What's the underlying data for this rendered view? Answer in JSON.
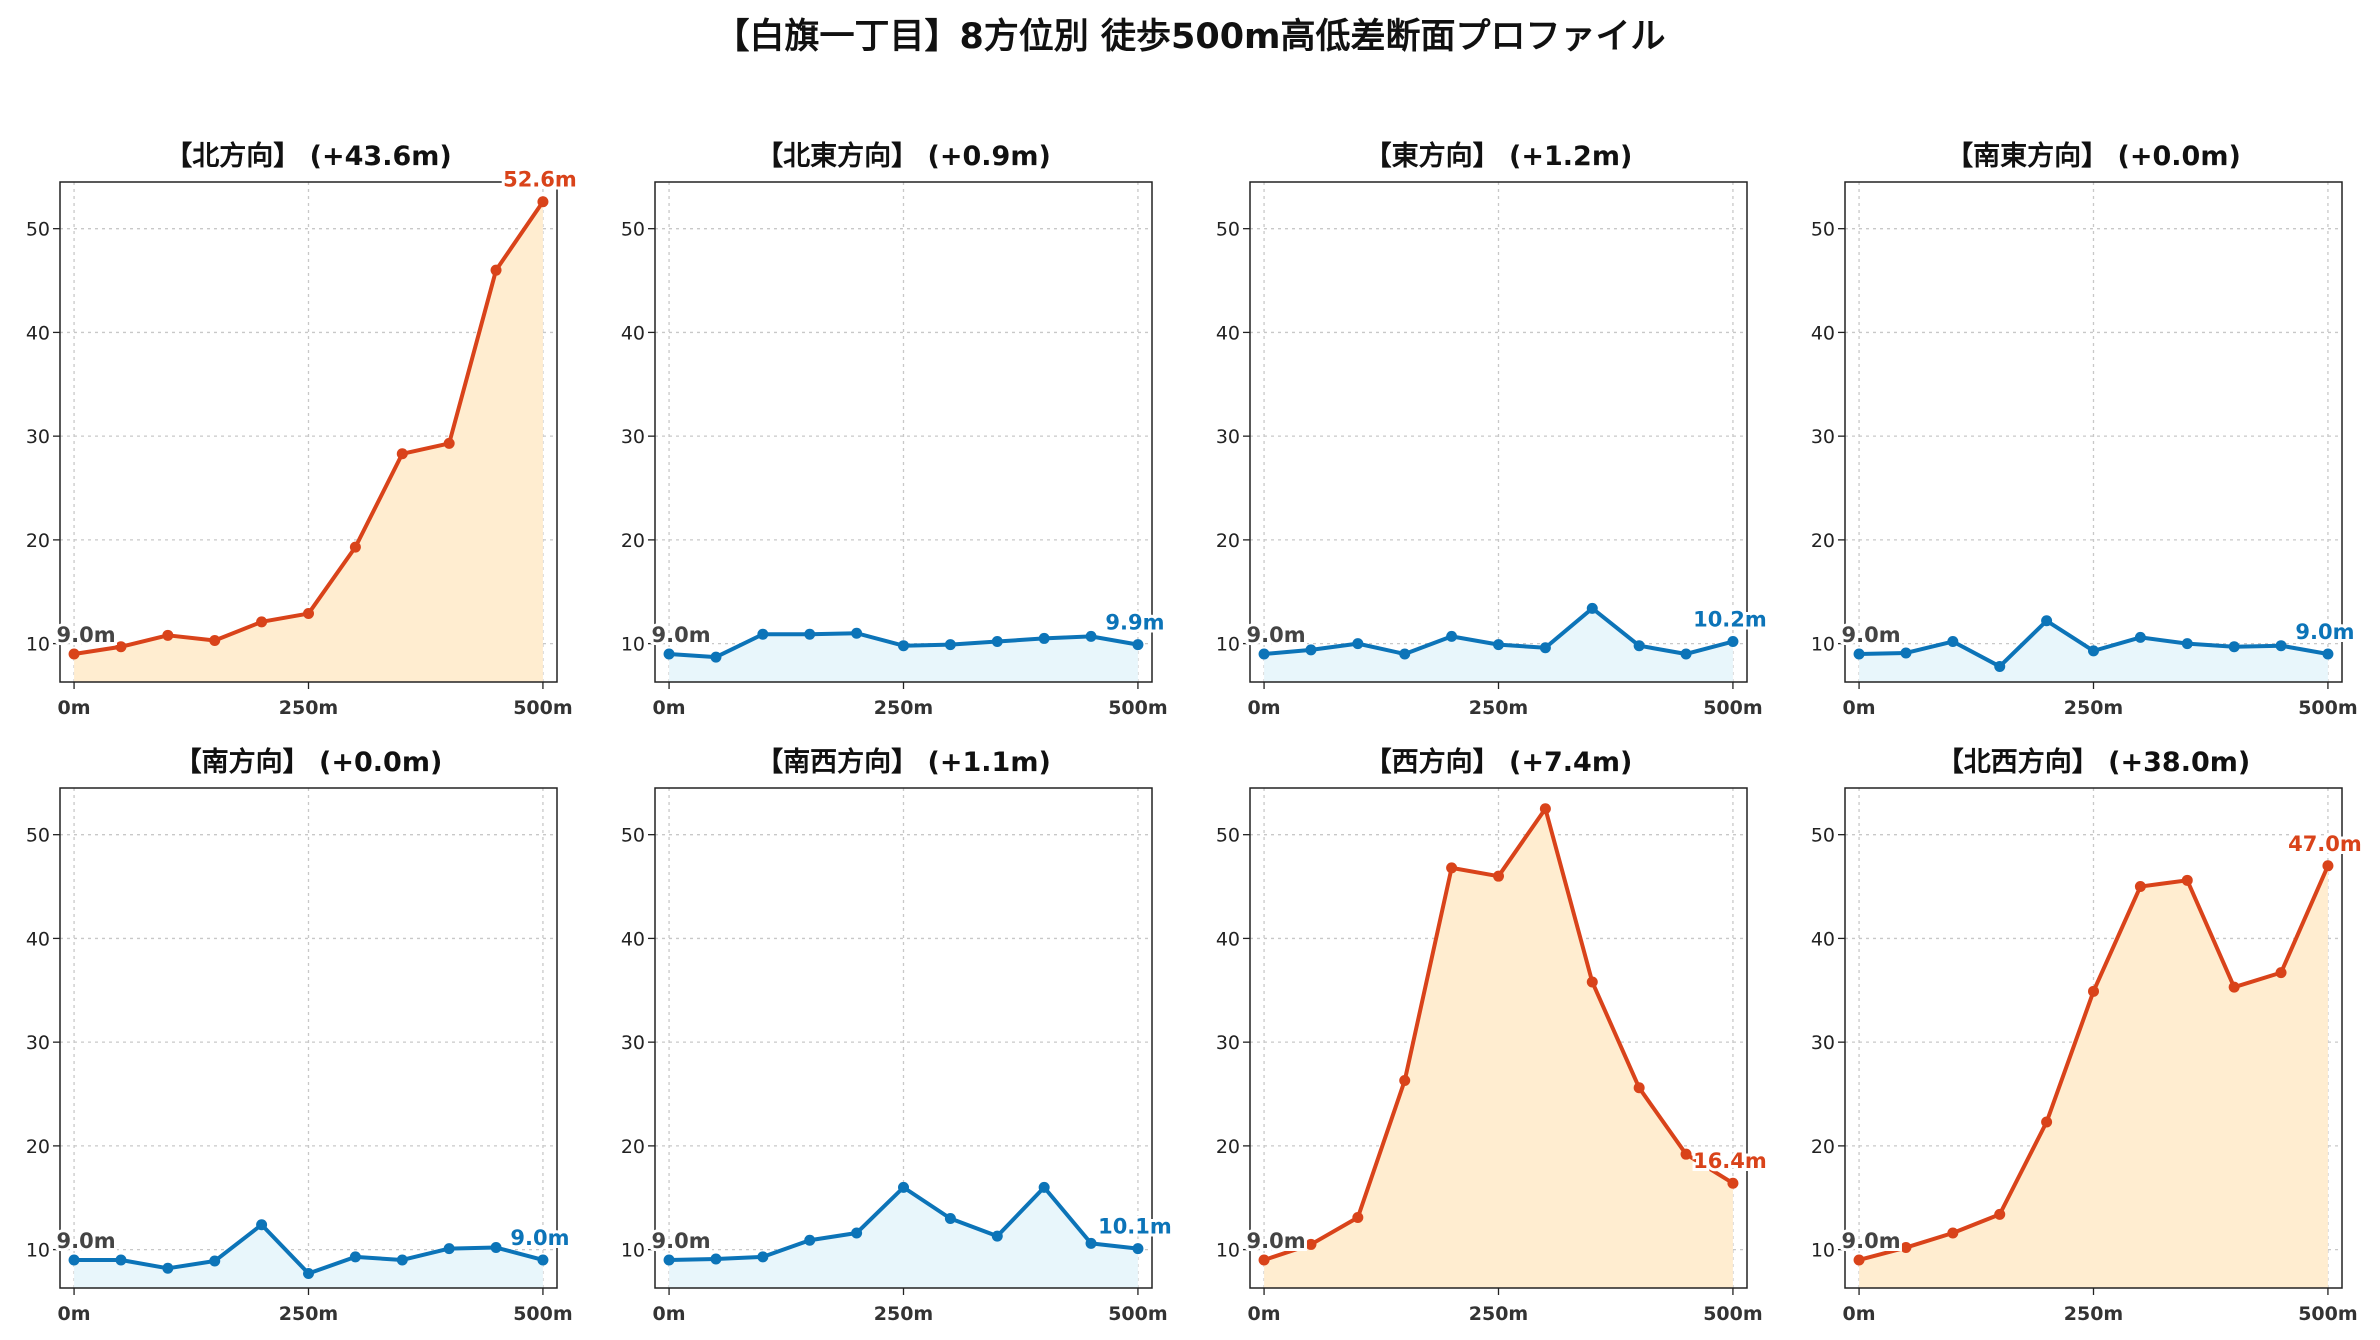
{
  "title": "【白旗一丁目】8方位別 徒歩500m高低差断面プロファイル",
  "colors": {
    "up_line": "#d9431a",
    "up_fill": "#ffedd0",
    "flat_line": "#0c74b8",
    "flat_fill": "#e8f6fb",
    "start_label": "#444444",
    "grid": "#c8c8c8"
  },
  "chart_data": [
    {
      "type": "line",
      "title": "【北方向】 (+43.6m)",
      "style": "up",
      "x": [
        0,
        50,
        100,
        150,
        200,
        250,
        300,
        350,
        400,
        450,
        500
      ],
      "y": [
        9.0,
        9.7,
        10.8,
        10.3,
        12.1,
        12.9,
        19.3,
        28.3,
        29.3,
        46.0,
        52.6
      ],
      "start_label": "9.0m",
      "end_label": "52.6m",
      "xticks": [
        "0m",
        "250m",
        "500m"
      ],
      "yticks": [
        "10",
        "20",
        "30",
        "40",
        "50"
      ],
      "xlim": [
        -15,
        515
      ],
      "ylim": [
        6.3,
        54.5
      ],
      "grid": true
    },
    {
      "type": "line",
      "title": "【北東方向】 (+0.9m)",
      "style": "flat",
      "x": [
        0,
        50,
        100,
        150,
        200,
        250,
        300,
        350,
        400,
        450,
        500
      ],
      "y": [
        9.0,
        8.7,
        10.9,
        10.9,
        11.0,
        9.8,
        9.9,
        10.2,
        10.5,
        10.7,
        9.9
      ],
      "start_label": "9.0m",
      "end_label": "9.9m",
      "xticks": [
        "0m",
        "250m",
        "500m"
      ],
      "yticks": [
        "10",
        "20",
        "30",
        "40",
        "50"
      ],
      "xlim": [
        -15,
        515
      ],
      "ylim": [
        6.3,
        54.5
      ],
      "grid": true
    },
    {
      "type": "line",
      "title": "【東方向】 (+1.2m)",
      "style": "flat",
      "x": [
        0,
        50,
        100,
        150,
        200,
        250,
        300,
        350,
        400,
        450,
        500
      ],
      "y": [
        9.0,
        9.4,
        10.0,
        9.0,
        10.7,
        9.9,
        9.6,
        13.4,
        9.8,
        9.0,
        10.2
      ],
      "start_label": "9.0m",
      "end_label": "10.2m",
      "xticks": [
        "0m",
        "250m",
        "500m"
      ],
      "yticks": [
        "10",
        "20",
        "30",
        "40",
        "50"
      ],
      "xlim": [
        -15,
        515
      ],
      "ylim": [
        6.3,
        54.5
      ],
      "grid": true
    },
    {
      "type": "line",
      "title": "【南東方向】 (+0.0m)",
      "style": "flat",
      "x": [
        0,
        50,
        100,
        150,
        200,
        250,
        300,
        350,
        400,
        450,
        500
      ],
      "y": [
        9.0,
        9.1,
        10.2,
        7.8,
        12.2,
        9.3,
        10.6,
        10.0,
        9.7,
        9.8,
        9.0
      ],
      "start_label": "9.0m",
      "end_label": "9.0m",
      "xticks": [
        "0m",
        "250m",
        "500m"
      ],
      "yticks": [
        "10",
        "20",
        "30",
        "40",
        "50"
      ],
      "xlim": [
        -15,
        515
      ],
      "ylim": [
        6.3,
        54.5
      ],
      "grid": true
    },
    {
      "type": "line",
      "title": "【南方向】 (+0.0m)",
      "style": "flat",
      "x": [
        0,
        50,
        100,
        150,
        200,
        250,
        300,
        350,
        400,
        450,
        500
      ],
      "y": [
        9.0,
        9.0,
        8.2,
        8.9,
        12.4,
        7.7,
        9.3,
        9.0,
        10.1,
        10.2,
        9.0
      ],
      "start_label": "9.0m",
      "end_label": "9.0m",
      "xticks": [
        "0m",
        "250m",
        "500m"
      ],
      "yticks": [
        "10",
        "20",
        "30",
        "40",
        "50"
      ],
      "xlim": [
        -15,
        515
      ],
      "ylim": [
        6.3,
        54.5
      ],
      "grid": true
    },
    {
      "type": "line",
      "title": "【南西方向】 (+1.1m)",
      "style": "flat",
      "x": [
        0,
        50,
        100,
        150,
        200,
        250,
        300,
        350,
        400,
        450,
        500
      ],
      "y": [
        9.0,
        9.1,
        9.3,
        10.9,
        11.6,
        16.0,
        13.0,
        11.3,
        16.0,
        10.6,
        10.1
      ],
      "start_label": "9.0m",
      "end_label": "10.1m",
      "xticks": [
        "0m",
        "250m",
        "500m"
      ],
      "yticks": [
        "10",
        "20",
        "30",
        "40",
        "50"
      ],
      "xlim": [
        -15,
        515
      ],
      "ylim": [
        6.3,
        54.5
      ],
      "grid": true
    },
    {
      "type": "line",
      "title": "【西方向】 (+7.4m)",
      "style": "up",
      "x": [
        0,
        50,
        100,
        150,
        200,
        250,
        300,
        350,
        400,
        450,
        500
      ],
      "y": [
        9.0,
        10.5,
        13.1,
        26.3,
        46.8,
        46.0,
        52.5,
        35.8,
        25.6,
        19.2,
        16.4
      ],
      "start_label": "9.0m",
      "end_label": "16.4m",
      "xticks": [
        "0m",
        "250m",
        "500m"
      ],
      "yticks": [
        "10",
        "20",
        "30",
        "40",
        "50"
      ],
      "xlim": [
        -15,
        515
      ],
      "ylim": [
        6.3,
        54.5
      ],
      "grid": true
    },
    {
      "type": "line",
      "title": "【北西方向】 (+38.0m)",
      "style": "up",
      "x": [
        0,
        50,
        100,
        150,
        200,
        250,
        300,
        350,
        400,
        450,
        500
      ],
      "y": [
        9.0,
        10.2,
        11.6,
        13.4,
        22.3,
        34.9,
        45.0,
        45.6,
        35.3,
        36.7,
        47.0
      ],
      "start_label": "9.0m",
      "end_label": "47.0m",
      "xticks": [
        "0m",
        "250m",
        "500m"
      ],
      "yticks": [
        "10",
        "20",
        "30",
        "40",
        "50"
      ],
      "xlim": [
        -15,
        515
      ],
      "ylim": [
        6.3,
        54.5
      ],
      "grid": true
    }
  ]
}
